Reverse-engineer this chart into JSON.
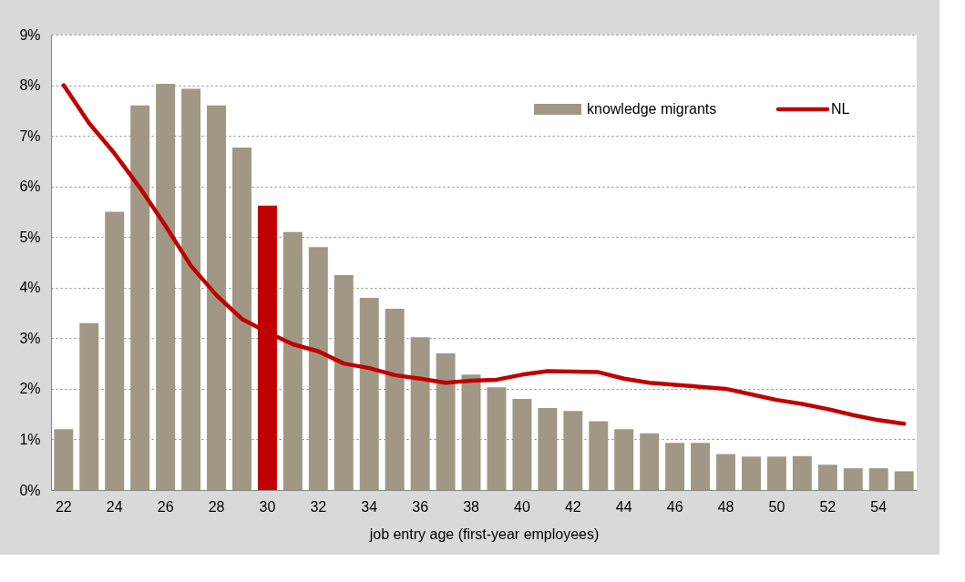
{
  "chart_data": {
    "type": "bar",
    "xlabel": "job entry age (first-year employees)",
    "categories": [
      "22",
      null,
      "24",
      null,
      "26",
      null,
      "28",
      null,
      "30",
      null,
      "32",
      null,
      "34",
      null,
      "36",
      null,
      "38",
      null,
      "40",
      null,
      "42",
      null,
      "44",
      null,
      "46",
      null,
      "48",
      null,
      "50",
      null,
      "52",
      null,
      "54",
      null
    ],
    "series": [
      {
        "name": "knowledge migrants",
        "color": "#a09884",
        "colors": [
          "#a09884",
          "#a09884",
          "#a09884",
          "#a09884",
          "#a09884",
          "#a09884",
          "#a09884",
          "#a09884",
          "#c00000",
          "#a09884",
          "#a09884",
          "#a09884",
          "#a09884",
          "#a09884",
          "#a09884",
          "#a09884",
          "#a09884",
          "#a09884",
          "#a09884",
          "#a09884",
          "#a09884",
          "#a09884",
          "#a09884",
          "#a09884",
          "#a09884",
          "#a09884",
          "#a09884",
          "#a09884",
          "#a09884",
          "#a09884",
          "#a09884",
          "#a09884",
          "#a09884",
          "#a09884"
        ],
        "values": [
          1.2,
          3.3,
          5.5,
          7.6,
          8.03,
          7.93,
          7.6,
          6.77,
          5.62,
          5.1,
          4.8,
          4.25,
          3.8,
          3.58,
          3.02,
          2.7,
          2.28,
          2.03,
          1.8,
          1.62,
          1.56,
          1.36,
          1.2,
          1.12,
          0.93,
          0.93,
          0.71,
          0.66,
          0.66,
          0.67,
          0.5,
          0.43,
          0.43,
          0.37
        ]
      },
      {
        "name": "NL",
        "type": "line",
        "color": "#c00000",
        "values": [
          8.0,
          7.25,
          6.65,
          5.97,
          5.22,
          4.43,
          3.85,
          3.38,
          3.12,
          2.88,
          2.74,
          2.5,
          2.41,
          2.27,
          2.2,
          2.12,
          2.16,
          2.18,
          2.28,
          2.35,
          2.34,
          2.33,
          2.2,
          2.12,
          2.08,
          2.04,
          2.0,
          1.89,
          1.78,
          1.7,
          1.6,
          1.48,
          1.38,
          1.31
        ]
      }
    ],
    "ylim": [
      0,
      9
    ],
    "yticks": [
      {
        "value": 0,
        "label": "0%"
      },
      {
        "value": 1,
        "label": "1%"
      },
      {
        "value": 2,
        "label": "2%"
      },
      {
        "value": 3,
        "label": "3%"
      },
      {
        "value": 4,
        "label": "4%"
      },
      {
        "value": 5,
        "label": "5%"
      },
      {
        "value": 6,
        "label": "6%"
      },
      {
        "value": 7,
        "label": "7%"
      },
      {
        "value": 8,
        "label": "8%"
      },
      {
        "value": 9,
        "label": "9%"
      }
    ],
    "grid": "y",
    "legend": "top right",
    "line_style": "solid"
  }
}
